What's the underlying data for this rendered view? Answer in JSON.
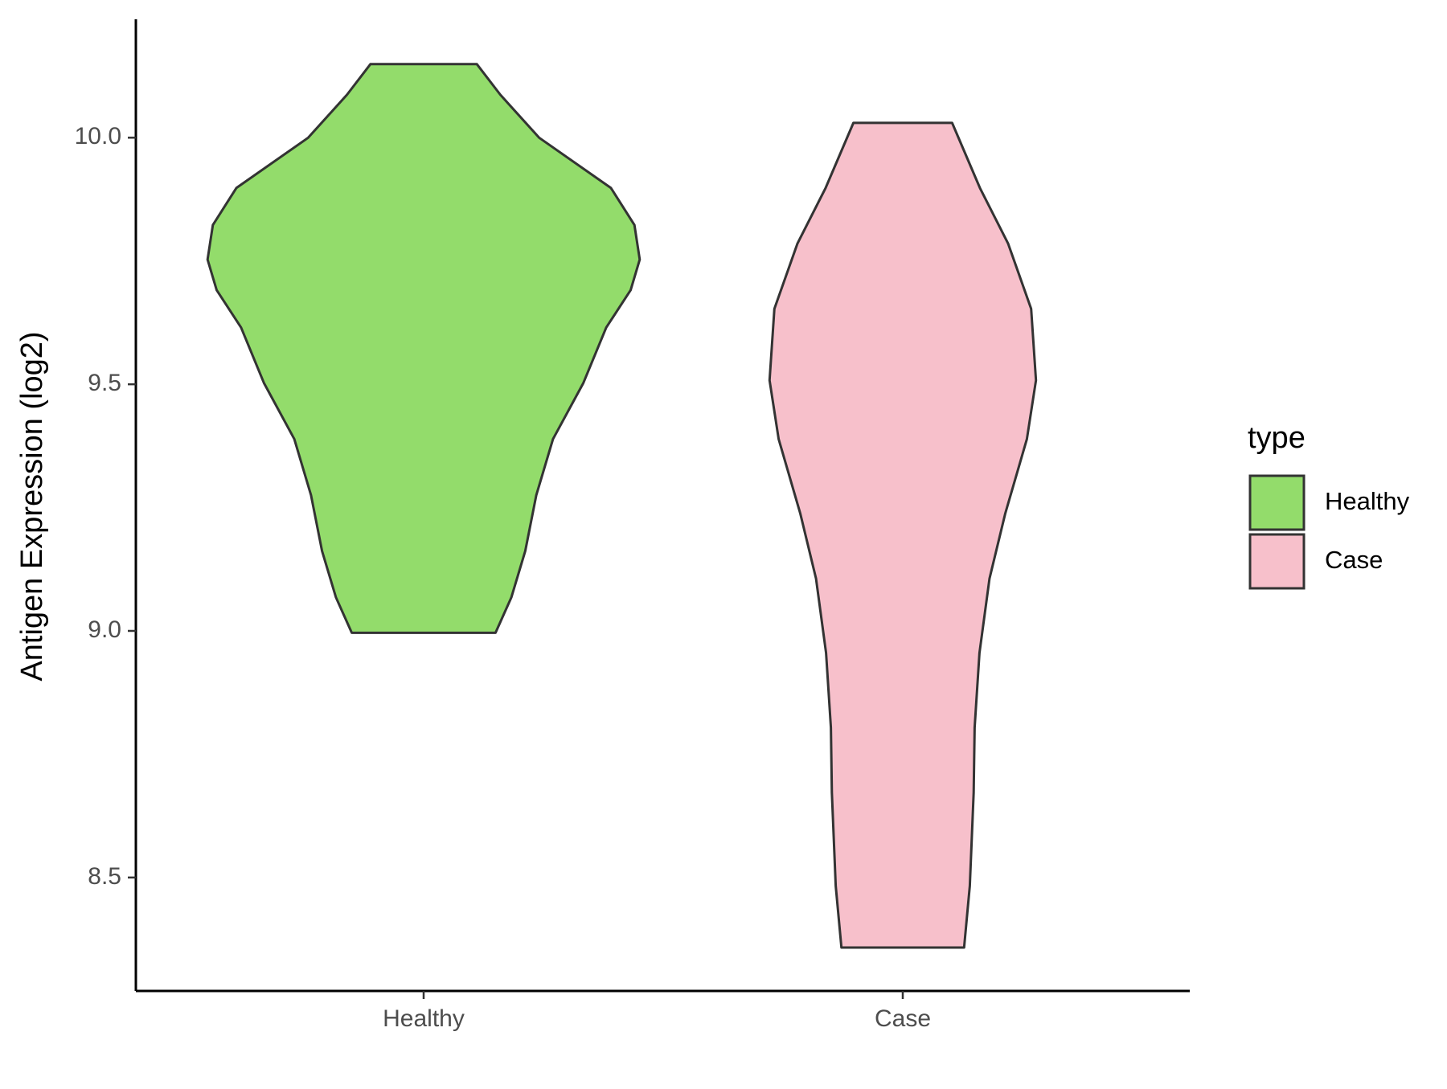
{
  "chart_data": {
    "type": "violin",
    "y_label": "Antigen Expression (log2)",
    "categories": [
      "Healthy",
      "Case"
    ],
    "legend_title": "type",
    "legend_position": "right",
    "ylim": [
      8.27,
      10.24
    ],
    "yticks": [
      8.5,
      {
        "value": 9,
        "label": "9.0"
      },
      9.5,
      {
        "value": 10,
        "label": "10.0"
      }
    ],
    "grid": false,
    "series": [
      {
        "name": "Healthy",
        "color": "#93dc6b",
        "y": [
          10.149,
          10.087,
          10.0,
          9.898,
          9.823,
          9.753,
          9.691,
          9.615,
          9.502,
          9.389,
          9.275,
          9.162,
          9.068,
          8.996
        ],
        "width": [
          0.111,
          0.16,
          0.241,
          0.391,
          0.44,
          0.451,
          0.432,
          0.381,
          0.333,
          0.27,
          0.235,
          0.212,
          0.183,
          0.15
        ]
      },
      {
        "name": "Case",
        "color": "#f7c0cb",
        "y": [
          10.03,
          9.898,
          9.785,
          9.653,
          9.508,
          9.389,
          9.238,
          9.106,
          8.955,
          8.804,
          8.672,
          8.483,
          8.358
        ],
        "width": [
          0.103,
          0.161,
          0.22,
          0.268,
          0.278,
          0.259,
          0.214,
          0.181,
          0.16,
          0.15,
          0.148,
          0.14,
          0.128
        ]
      }
    ]
  }
}
